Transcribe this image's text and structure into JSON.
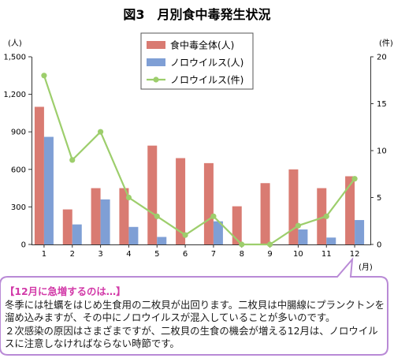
{
  "chart_data": {
    "type": "bar",
    "title": "図3　月別食中毒発生状況",
    "categories": [
      "1",
      "2",
      "3",
      "4",
      "5",
      "6",
      "7",
      "8",
      "9",
      "10",
      "11",
      "12"
    ],
    "x_unit": "(月)",
    "y_left_unit": "(人)",
    "y_right_unit": "(件)",
    "y_left_ticks": [
      "0",
      "300",
      "600",
      "900",
      "1,200",
      "1,500"
    ],
    "y_left_lim": [
      0,
      1500
    ],
    "y_right_ticks": [
      "0",
      "5",
      "10",
      "15",
      "20"
    ],
    "y_right_lim": [
      0,
      20
    ],
    "legend_position": "top-center",
    "grid": false,
    "series": [
      {
        "name": "食中毒全体(人)",
        "type": "bar",
        "axis": "left",
        "color": "#d97b72",
        "values": [
          1100,
          280,
          450,
          450,
          790,
          690,
          650,
          305,
          490,
          600,
          450,
          545
        ]
      },
      {
        "name": "ノロウイルス(人)",
        "type": "bar",
        "axis": "left",
        "color": "#7f9fd5",
        "values": [
          860,
          160,
          360,
          140,
          60,
          0,
          185,
          0,
          0,
          120,
          55,
          195
        ]
      },
      {
        "name": "ノロウイルス(件)",
        "type": "line",
        "axis": "right",
        "color": "#9dce6c",
        "values": [
          18,
          9,
          12,
          5,
          3,
          1,
          3,
          0,
          0,
          2,
          3,
          7
        ]
      }
    ]
  },
  "callout": {
    "heading": "【12月に急増するのは…】",
    "paragraph_1": "冬季には牡蠣をはじめ生食用の二枚貝が出回ります。二枚貝は中腸線にプランクトンを溜め込みますが、その中にノロウイルスが混入していることが多いのです。",
    "paragraph_2": "２次感染の原因はさまざまですが、二枚貝の生食の機会が増える12月は、ノロウイルスに注意しなければならない時節です。",
    "border_color": "#b98ad6"
  }
}
